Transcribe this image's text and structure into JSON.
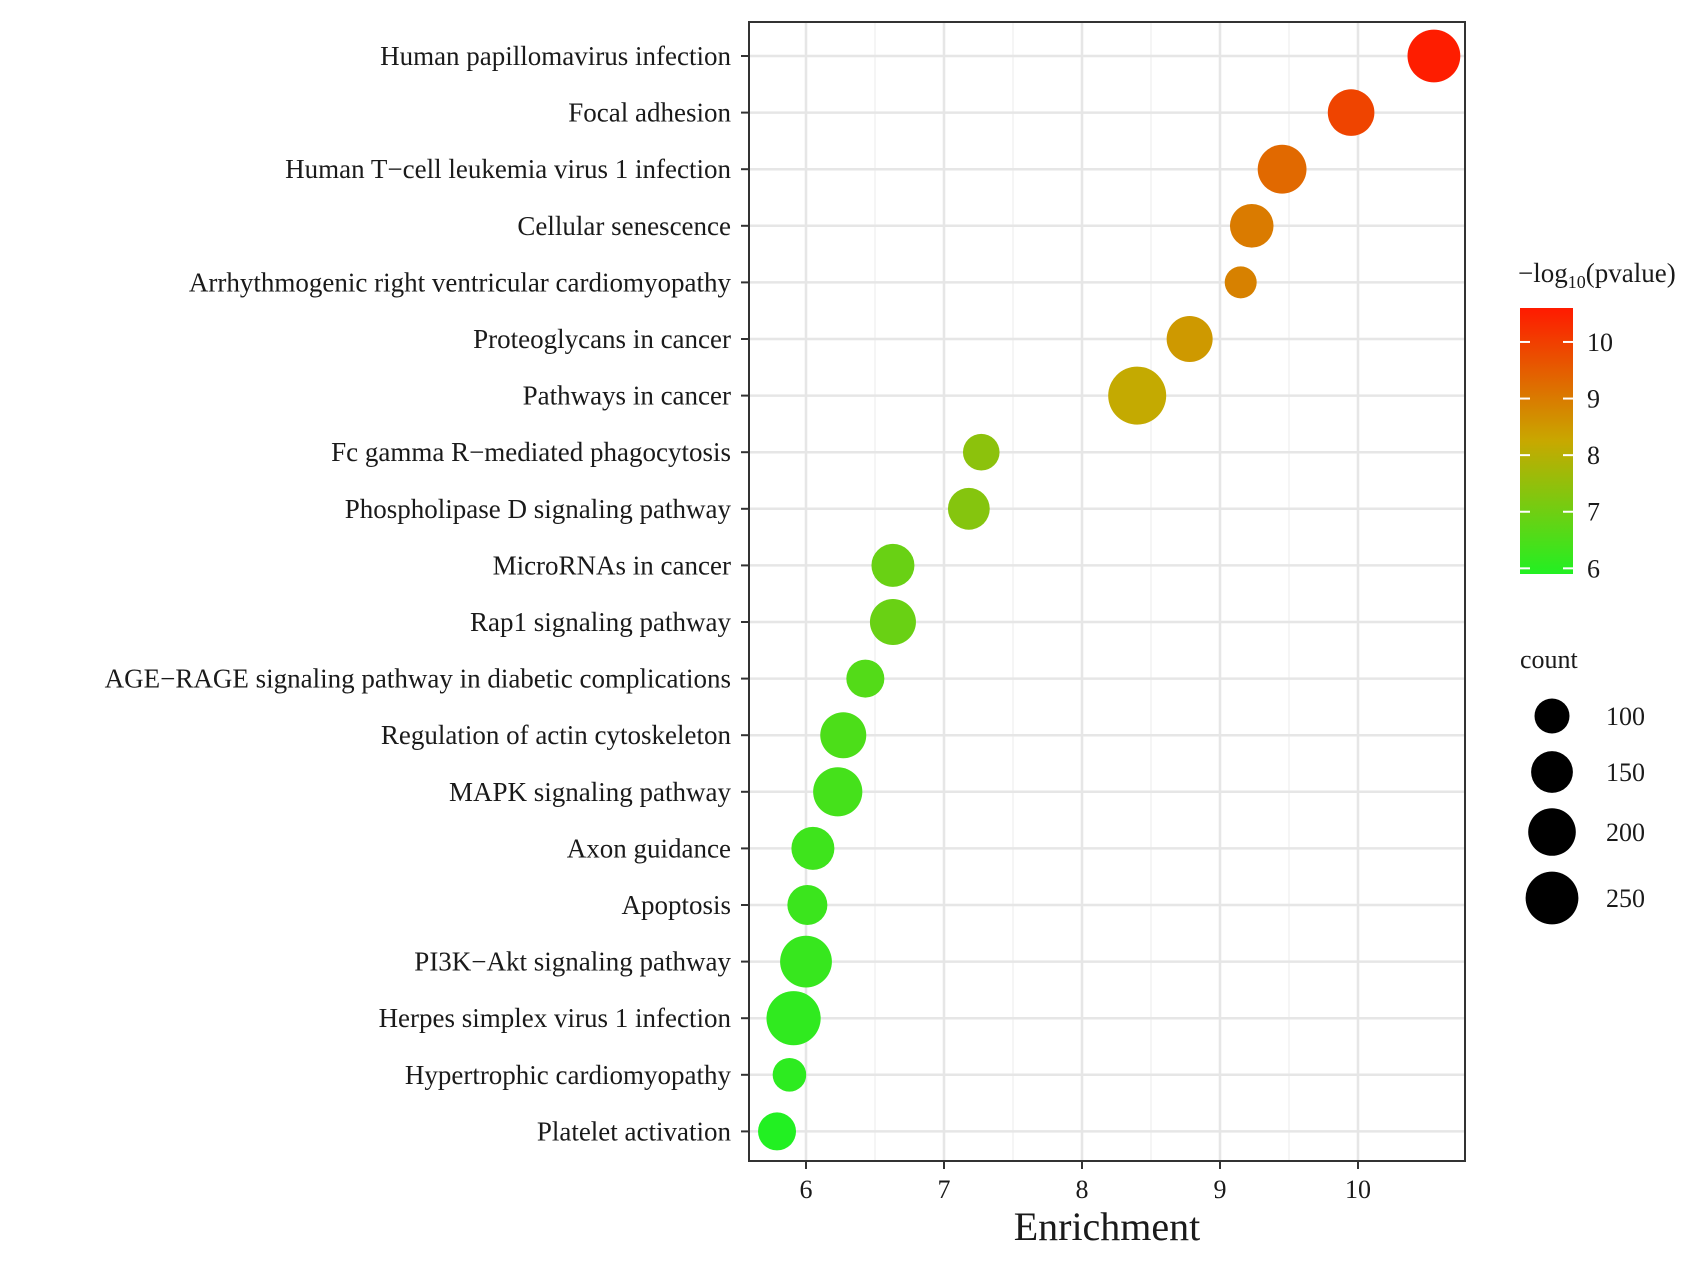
{
  "chart_data": {
    "type": "scatter",
    "title": "",
    "xlabel": "Enrichment",
    "ylabel": "",
    "xlim": [
      5.6,
      10.8
    ],
    "xticks": [
      6,
      7,
      8,
      9,
      10
    ],
    "grid": true,
    "points": [
      {
        "term": "Human papillomavirus infection",
        "enrichment": 10.55,
        "log10p": 10.55,
        "count": 250
      },
      {
        "term": "Focal adhesion",
        "enrichment": 9.95,
        "log10p": 9.9,
        "count": 190
      },
      {
        "term": "Human T−cell leukemia virus 1 infection",
        "enrichment": 9.45,
        "log10p": 9.3,
        "count": 210
      },
      {
        "term": "Cellular senescence",
        "enrichment": 9.23,
        "log10p": 9.0,
        "count": 165
      },
      {
        "term": "Arrhythmogenic right ventricular cardiomyopathy",
        "enrichment": 9.15,
        "log10p": 8.9,
        "count": 80
      },
      {
        "term": "Proteoglycans in cancer",
        "enrichment": 8.78,
        "log10p": 8.5,
        "count": 185
      },
      {
        "term": "Pathways in cancer",
        "enrichment": 8.4,
        "log10p": 8.2,
        "count": 305
      },
      {
        "term": "Fc gamma R−mediated phagocytosis",
        "enrichment": 7.27,
        "log10p": 7.4,
        "count": 110
      },
      {
        "term": "Phospholipase D signaling pathway",
        "enrichment": 7.18,
        "log10p": 7.3,
        "count": 150
      },
      {
        "term": "MicroRNAs in cancer",
        "enrichment": 6.63,
        "log10p": 6.9,
        "count": 160
      },
      {
        "term": "Rap1 signaling pathway",
        "enrichment": 6.63,
        "log10p": 6.9,
        "count": 185
      },
      {
        "term": "AGE−RAGE signaling pathway in diabetic complications",
        "enrichment": 6.43,
        "log10p": 6.6,
        "count": 120
      },
      {
        "term": "Regulation of actin cytoskeleton",
        "enrichment": 6.27,
        "log10p": 6.5,
        "count": 185
      },
      {
        "term": "MAPK signaling pathway",
        "enrichment": 6.23,
        "log10p": 6.4,
        "count": 215
      },
      {
        "term": "Axon guidance",
        "enrichment": 6.05,
        "log10p": 6.3,
        "count": 160
      },
      {
        "term": "Apoptosis",
        "enrichment": 6.01,
        "log10p": 6.25,
        "count": 135
      },
      {
        "term": "PI3K−Akt signaling pathway",
        "enrichment": 6.0,
        "log10p": 6.2,
        "count": 240
      },
      {
        "term": "Herpes simplex virus 1 infection",
        "enrichment": 5.91,
        "log10p": 6.1,
        "count": 265
      },
      {
        "term": "Hypertrophic cardiomyopathy",
        "enrichment": 5.88,
        "log10p": 6.05,
        "count": 90
      },
      {
        "term": "Platelet activation",
        "enrichment": 5.79,
        "log10p": 5.9,
        "count": 120
      }
    ],
    "color_legend": {
      "title_prefix": "−log",
      "title_sub": "10",
      "title_suffix": "(pvalue)",
      "range": [
        5.9,
        10.6
      ],
      "ticks": [
        6,
        7,
        8,
        9,
        10
      ],
      "low_color": "#22f022",
      "mid_color": "#c8a800",
      "high_color": "#ff1a00"
    },
    "size_legend": {
      "title": "count",
      "values": [
        100,
        150,
        200,
        250
      ],
      "dot_color": "#000000"
    },
    "size_range": [
      80,
      305
    ]
  }
}
